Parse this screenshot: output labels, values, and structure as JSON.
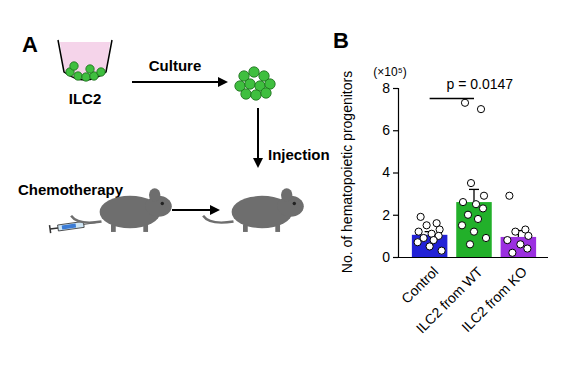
{
  "chart_data": {
    "type": "bar",
    "ylabel": "No. of hematopoietic progenitors",
    "ylabel_unit": "(×10⁵)",
    "categories": [
      "Control",
      "ILC2 from WT",
      "ILC2 from KO"
    ],
    "values": [
      1.05,
      2.6,
      0.95
    ],
    "errors": [
      0.15,
      0.6,
      0.3
    ],
    "points": [
      [
        1.9,
        1.6,
        1.5,
        1.3,
        1.2,
        1.1,
        1.0,
        0.9,
        0.8,
        0.7,
        0.5,
        0.3
      ],
      [
        7.3,
        7.0,
        3.5,
        2.9,
        2.6,
        2.5,
        2.3,
        2.0,
        1.8,
        1.5,
        1.2,
        0.9,
        0.6
      ],
      [
        2.9,
        1.3,
        1.2,
        1.0,
        0.8,
        0.6,
        0.4,
        0.2
      ]
    ],
    "colors": [
      "#2222d6",
      "#22b02a",
      "#9b30e0"
    ],
    "ylim": [
      0,
      8
    ],
    "yticks": [
      0,
      2,
      4,
      6,
      8
    ],
    "annotations": [
      {
        "text": "p = 0.0147",
        "from": 0,
        "to": 1,
        "y": 7.5
      }
    ]
  },
  "diagram": {
    "panel_labels": [
      "A",
      "B"
    ],
    "cell_label": "ILC2",
    "step_culture": "Culture",
    "step_injection": "Injection",
    "step_treatment": "Chemotherapy"
  }
}
